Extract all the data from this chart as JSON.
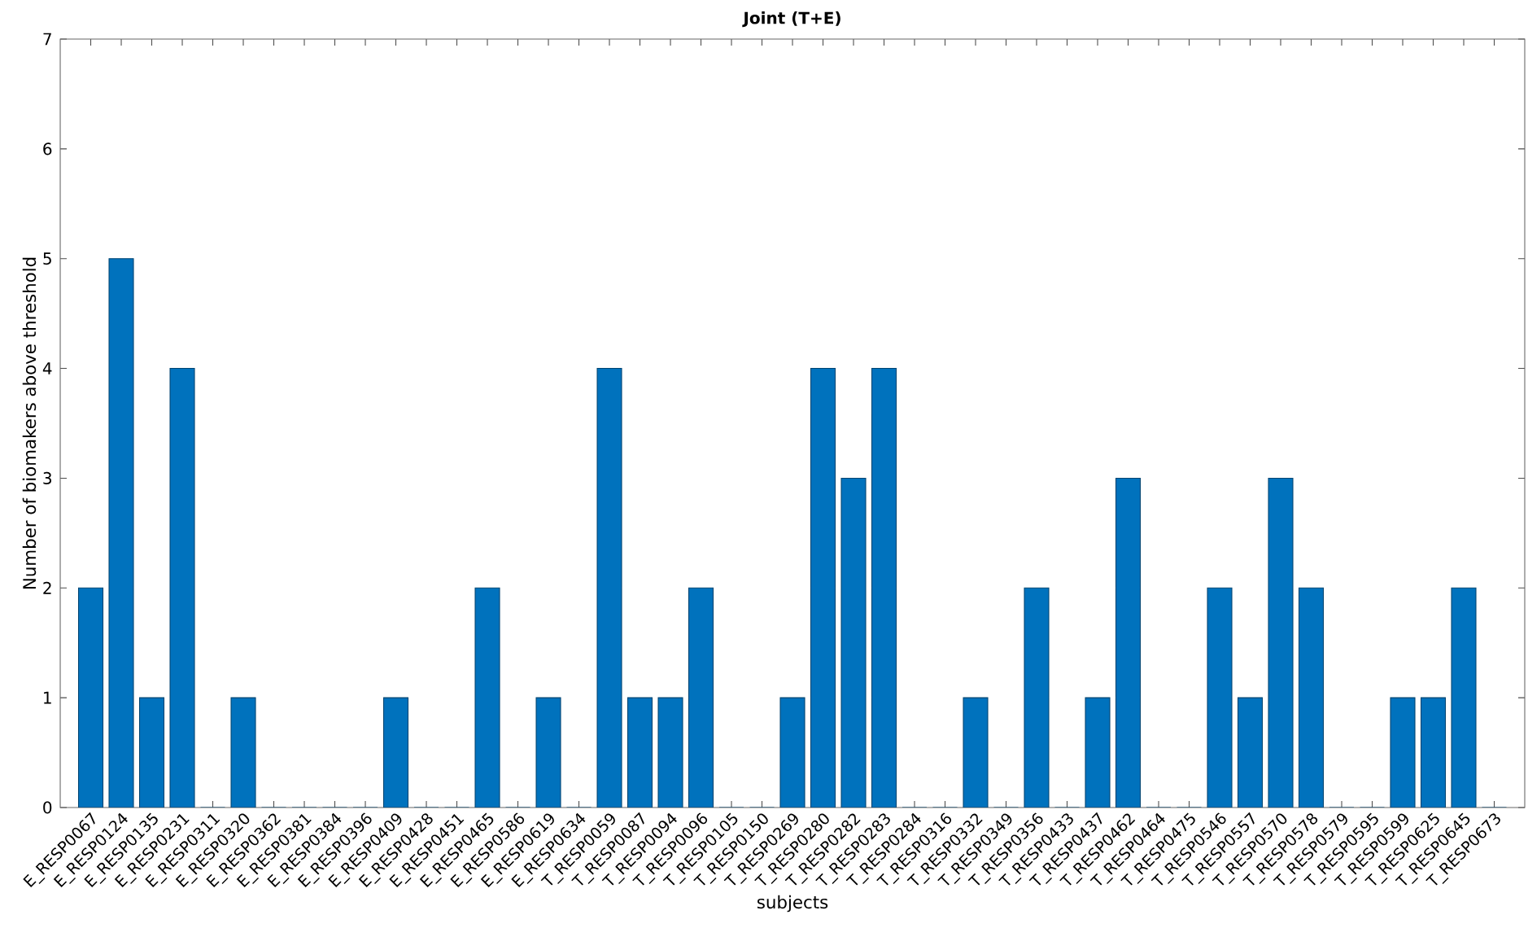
{
  "chart_data": {
    "type": "bar",
    "title": "Joint (T+E)",
    "xlabel": "subjects",
    "ylabel": "Number of biomakers above threshold",
    "categories": [
      "E_RESP0067",
      "E_RESP0124",
      "E_RESP0135",
      "E_RESP0231",
      "E_RESP0311",
      "E_RESP0320",
      "E_RESP0362",
      "E_RESP0381",
      "E_RESP0384",
      "E_RESP0396",
      "E_RESP0409",
      "E_RESP0428",
      "E_RESP0451",
      "E_RESP0465",
      "E_RESP0586",
      "E_RESP0619",
      "E_RESP0634",
      "T_RESP0059",
      "T_RESP0087",
      "T_RESP0094",
      "T_RESP0096",
      "T_RESP0105",
      "T_RESP0150",
      "T_RESP0269",
      "T_RESP0280",
      "T_RESP0282",
      "T_RESP0283",
      "T_RESP0284",
      "T_RESP0316",
      "T_RESP0332",
      "T_RESP0349",
      "T_RESP0356",
      "T_RESP0433",
      "T_RESP0437",
      "T_RESP0462",
      "T_RESP0464",
      "T_RESP0475",
      "T_RESP0546",
      "T_RESP0557",
      "T_RESP0570",
      "T_RESP0578",
      "T_RESP0579",
      "T_RESP0595",
      "T_RESP0599",
      "T_RESP0625",
      "T_RESP0645",
      "T_RESP0673"
    ],
    "values": [
      2,
      5,
      1,
      4,
      0,
      1,
      0,
      0,
      0,
      0,
      1,
      0,
      0,
      2,
      0,
      1,
      0,
      4,
      1,
      1,
      2,
      0,
      0,
      1,
      4,
      3,
      4,
      0,
      0,
      1,
      0,
      2,
      0,
      1,
      3,
      0,
      0,
      2,
      1,
      3,
      2,
      0,
      0,
      1,
      1,
      2,
      0
    ],
    "color": "#0072bd",
    "ylim": [
      0,
      7
    ],
    "yticks": [
      0,
      1,
      2,
      3,
      4,
      5,
      6,
      7
    ]
  }
}
